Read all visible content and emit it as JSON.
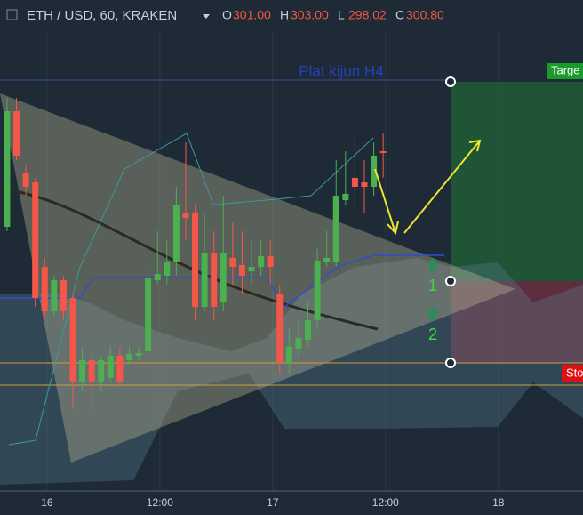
{
  "chart_data": {
    "type": "candlestick",
    "symbol": "ETH / USD, 60, KRAKEN",
    "ohlc_legend": {
      "labels": [
        "O",
        "H",
        "L",
        "C"
      ],
      "values": [
        301,
        303,
        298.02,
        300.8
      ],
      "value_labels": [
        "301.00",
        "303.00",
        "298.02",
        "300.80"
      ]
    },
    "annotations": {
      "kijun": "Plat kijun H4",
      "target": "Targe",
      "stop": "Sto",
      "step1": "1",
      "step2": "2"
    },
    "x": [
      1.5,
      3.5,
      5.5,
      7.5,
      9.5,
      11.5,
      13.5,
      15.5,
      17.5,
      19.5,
      21.5,
      23.5,
      25.5,
      27.5,
      29.5,
      31.5,
      33.5,
      35.5,
      37.5,
      39.5,
      41.5,
      43.5,
      45.5,
      47.5,
      49.5,
      51.5,
      53.5,
      55.5,
      57.5,
      59.5,
      61.5,
      63.5,
      65.5,
      67.5,
      69.5,
      71.5,
      73.5,
      75.5,
      77.5,
      79.5,
      81.5
    ],
    "open": [
      292.5,
      305.5,
      298.5,
      297.5,
      288,
      283,
      286.5,
      284.5,
      275,
      277.5,
      275,
      275.5,
      278,
      277.5,
      278,
      278.5,
      286.5,
      287,
      288.5,
      294,
      294,
      283.5,
      289.5,
      284,
      289,
      288.2,
      287.5,
      288,
      289.2,
      285,
      277.2,
      278.8,
      279.8,
      282,
      288.5,
      288.5,
      295.5,
      298,
      297.5,
      297,
      301
    ],
    "high": [
      307,
      307,
      299.5,
      298,
      289,
      287,
      287,
      285,
      279,
      278,
      278,
      279,
      279,
      279,
      279,
      288,
      292,
      291,
      297,
      302,
      295,
      294,
      292,
      296,
      293,
      292,
      291,
      291,
      291,
      286,
      281,
      282,
      284,
      290,
      292,
      300,
      301,
      303,
      300,
      302,
      303
    ],
    "low": [
      292,
      300,
      296,
      283.5,
      282,
      282.5,
      282,
      272,
      274,
      272,
      274,
      275,
      274.5,
      277,
      277.5,
      278,
      286,
      286,
      287,
      291,
      282,
      283,
      282,
      283,
      286,
      285,
      286,
      287,
      286,
      276,
      276,
      278,
      279,
      281,
      288,
      288,
      295,
      294,
      294,
      296,
      298.02
    ],
    "close": [
      305.5,
      300.5,
      297,
      284.5,
      283,
      286.5,
      283,
      275,
      277.5,
      275,
      277.5,
      278,
      275,
      278.2,
      278.3,
      286.8,
      287.2,
      288.5,
      295,
      293.5,
      283.5,
      289.5,
      283.5,
      289.5,
      288,
      287,
      288,
      289.2,
      288,
      277.2,
      279,
      280,
      282,
      288.7,
      289,
      296,
      296.2,
      297,
      297,
      300.5,
      300.8
    ],
    "up_color": "#4caf50",
    "down_color": "#f4574a",
    "xlim": [
      0,
      124
    ],
    "xticks": [
      {
        "value": 10,
        "label": "16"
      },
      {
        "value": 34,
        "label": "12:00"
      },
      {
        "value": 58,
        "label": "17"
      },
      {
        "value": 82,
        "label": "12:00"
      },
      {
        "value": 106,
        "label": "18"
      }
    ],
    "ylim": [
      263,
      318
    ],
    "grid": true
  }
}
